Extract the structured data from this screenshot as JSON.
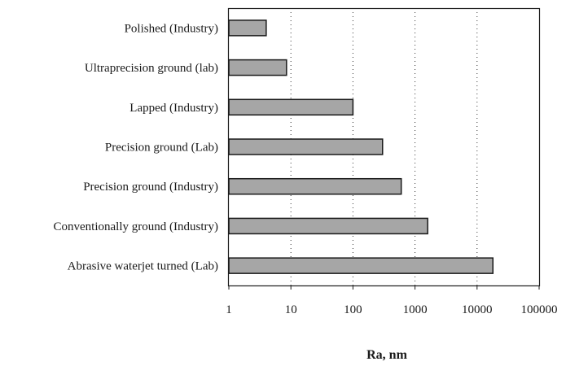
{
  "chart_data": {
    "type": "bar",
    "orientation": "horizontal",
    "title": "",
    "xlabel": "Ra, nm",
    "ylabel": "",
    "x_scale": "log",
    "xlim": [
      1,
      100000
    ],
    "x_ticks": [
      "1",
      "10",
      "100",
      "1000",
      "10000",
      "100000"
    ],
    "grid": "vertical dotted",
    "bar_color": "#a6a6a6",
    "categories": [
      "Polished (Industry)",
      "Ultraprecision ground (lab)",
      "Lapped (Industry)",
      "Precision ground (Lab)",
      "Precision ground (Industry)",
      "Conventionally ground (Industry)",
      "Abrasive waterjet turned (Lab)"
    ],
    "values": [
      4,
      8.5,
      100,
      300,
      600,
      1600,
      18000
    ]
  }
}
